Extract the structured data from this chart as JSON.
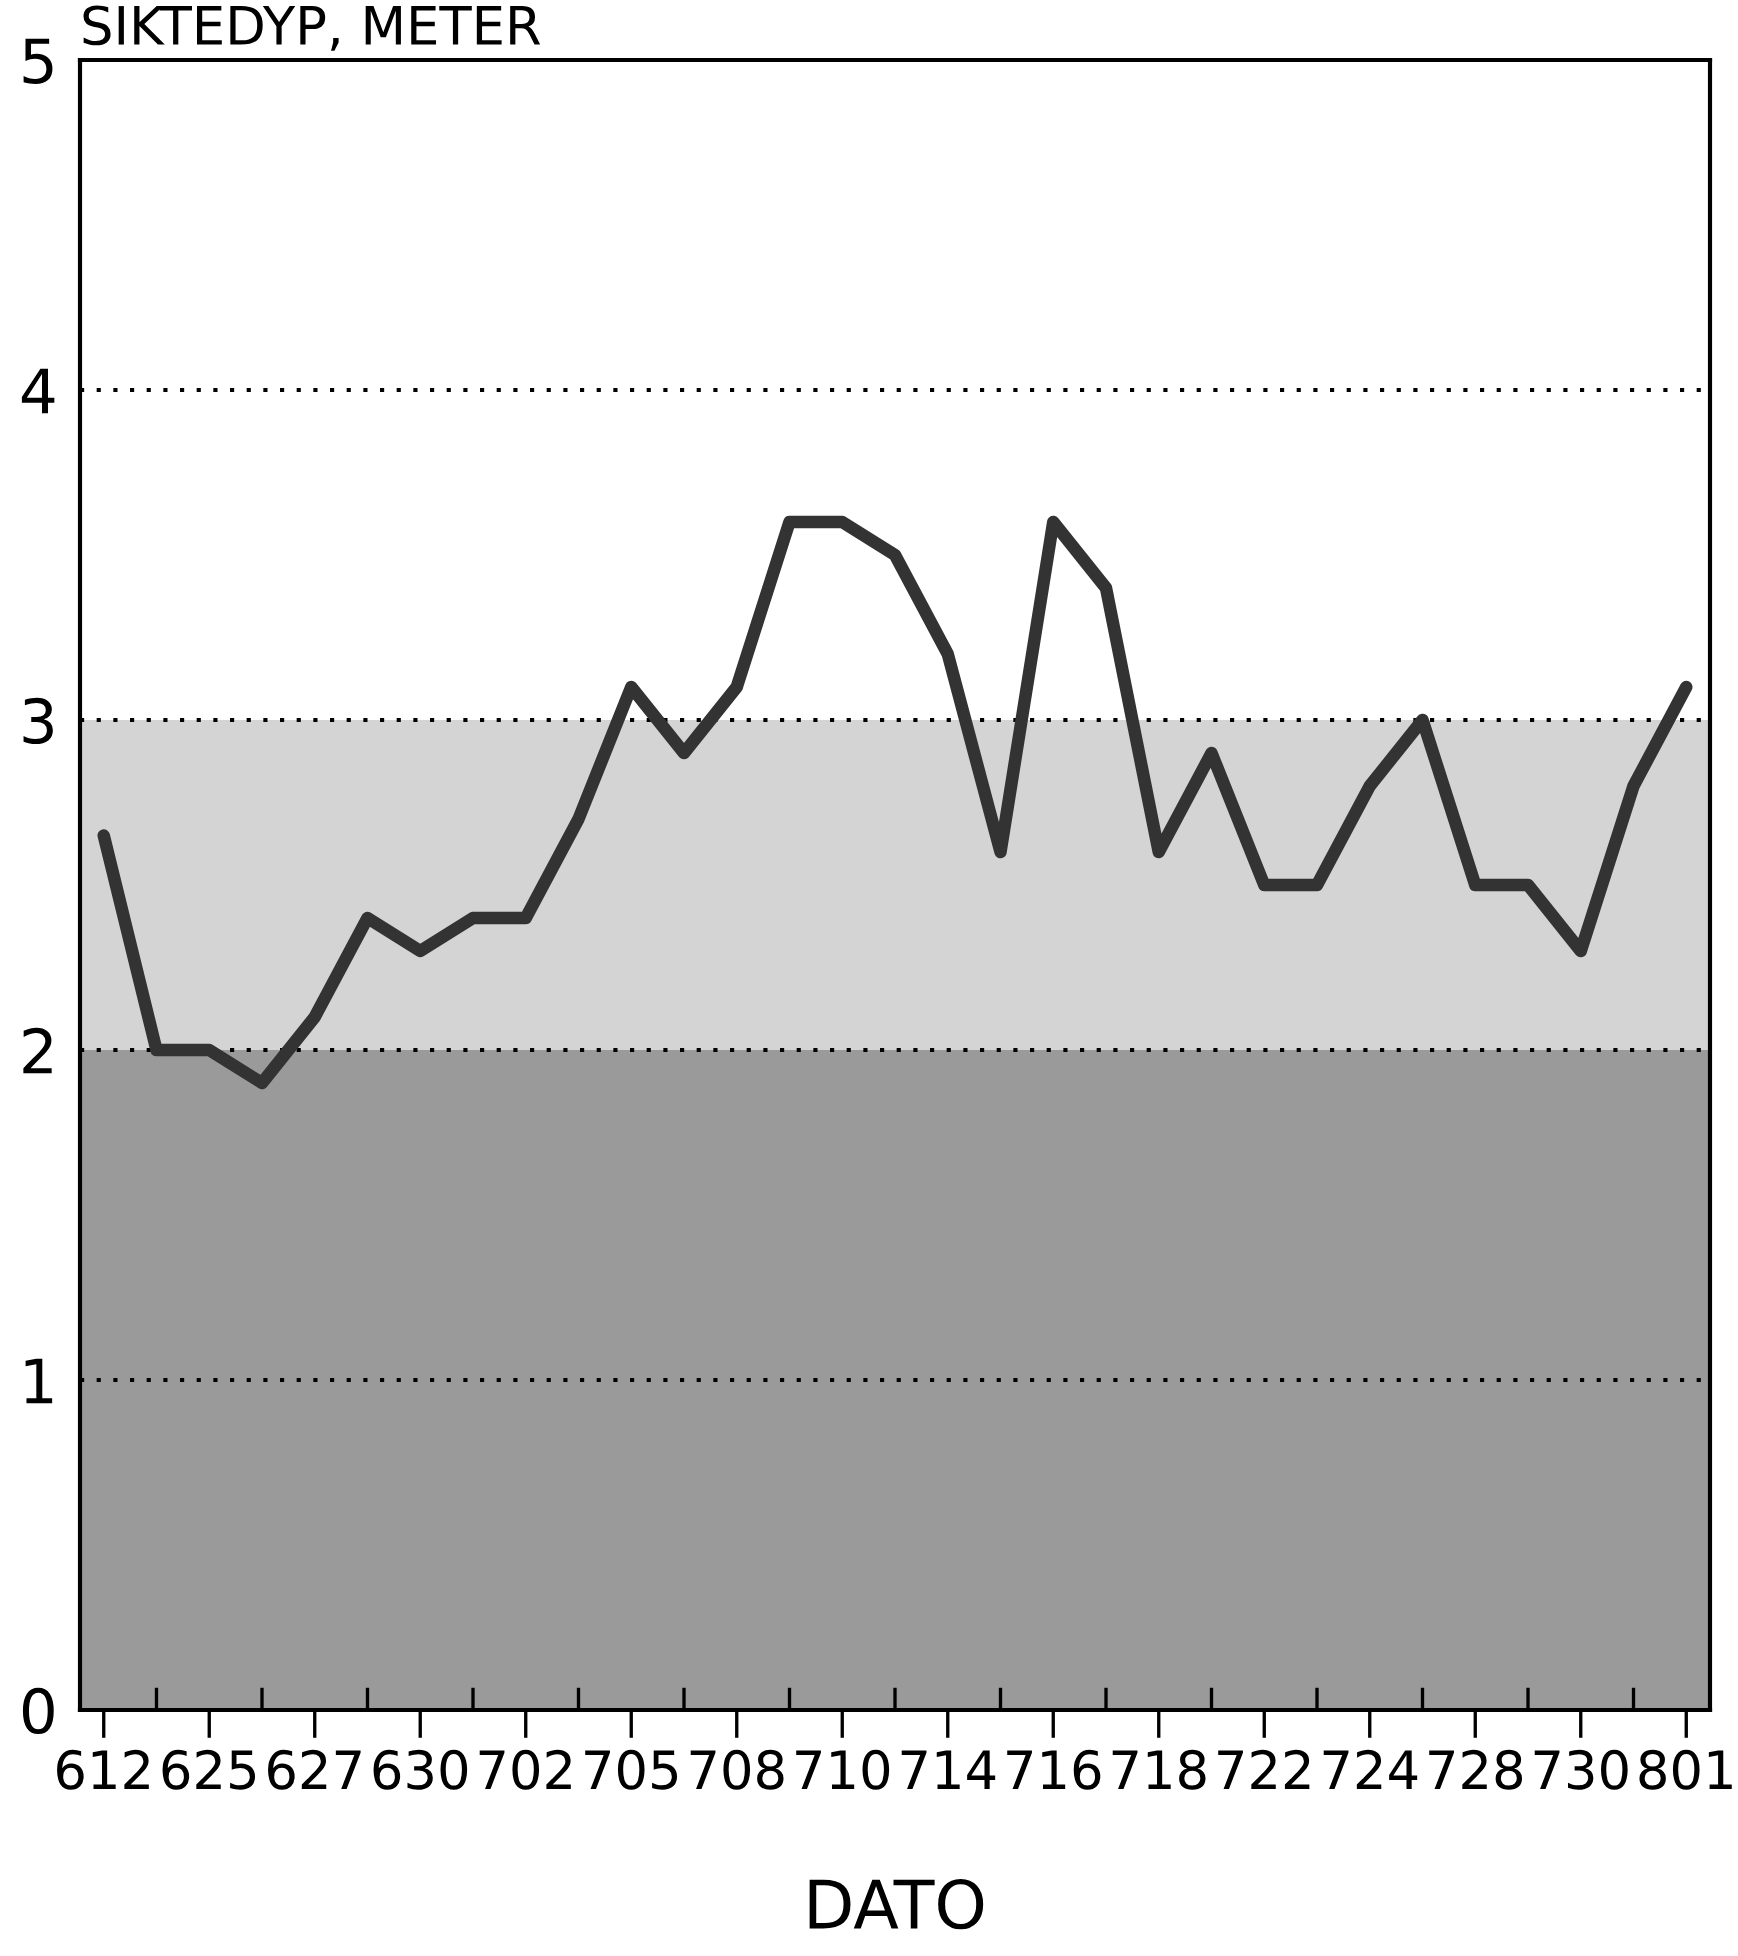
{
  "chart_data": {
    "type": "line",
    "ylabel": "SIKTEDYP, METER",
    "xlabel": "DATO",
    "categories": [
      "612",
      null,
      "625",
      null,
      "627",
      null,
      "630",
      null,
      "702",
      null,
      "705",
      null,
      "708",
      null,
      "710",
      null,
      "714",
      null,
      "716",
      null,
      "718",
      null,
      "722",
      null,
      "724",
      null,
      "728",
      null,
      "730",
      null,
      "801"
    ],
    "series": [
      {
        "color": "#333333",
        "values": [
          2.65,
          2.0,
          2.0,
          1.9,
          2.1,
          2.4,
          2.3,
          2.4,
          2.4,
          2.7,
          3.1,
          2.9,
          3.1,
          3.6,
          3.6,
          3.5,
          3.2,
          2.6,
          3.6,
          3.4,
          2.6,
          2.9,
          2.5,
          2.5,
          2.8,
          3.0,
          2.5,
          2.5,
          2.3,
          2.8,
          3.1
        ]
      }
    ],
    "ylim": [
      0,
      5
    ],
    "yticks": [
      0,
      1,
      2,
      3,
      4,
      5
    ],
    "grid": "y",
    "line_style": "solid",
    "marker": "none",
    "bands": [
      {
        "axis": "y",
        "from": 0,
        "to": 2,
        "color": "#9a9a9a"
      },
      {
        "axis": "y",
        "from": 2,
        "to": 3,
        "color": "#d4d4d4"
      }
    ]
  }
}
